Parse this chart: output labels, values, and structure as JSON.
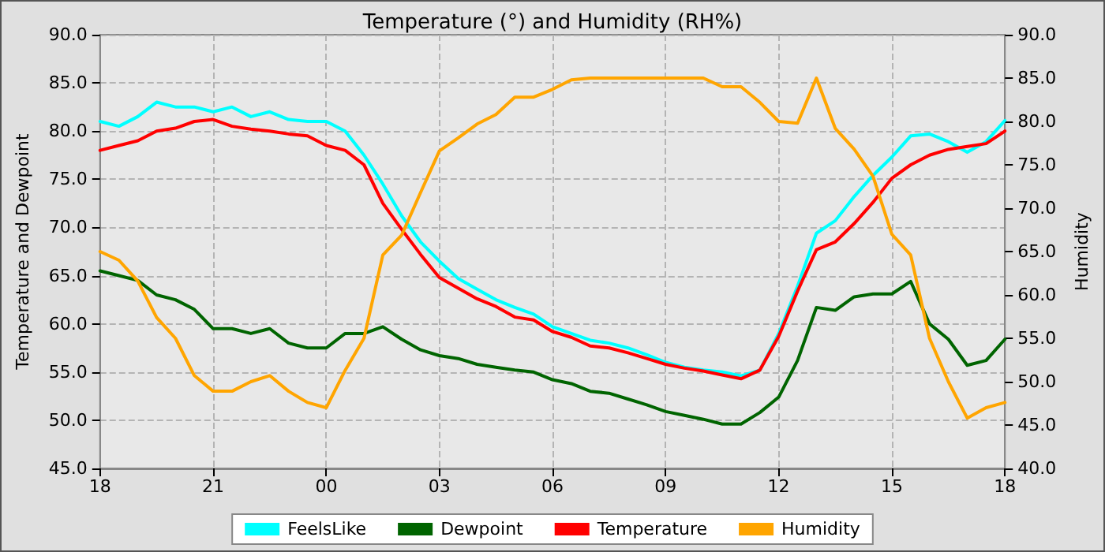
{
  "chart_data": {
    "type": "line",
    "title": "Temperature (°) and Humidity (RH%)",
    "ylabel": "Temperature and Dewpoint",
    "y2label": "Humidity",
    "x": [
      18,
      18.5,
      19,
      19.5,
      20,
      20.5,
      21,
      21.5,
      22,
      22.5,
      23,
      23.5,
      24,
      24.5,
      25,
      25.5,
      26,
      26.5,
      27,
      27.5,
      28,
      28.5,
      29,
      29.5,
      30,
      30.5,
      31,
      31.5,
      32,
      32.5,
      33,
      33.5,
      34,
      34.5,
      35,
      35.5,
      36,
      36.5,
      37,
      37.5,
      38,
      38.5,
      39,
      39.5,
      40,
      40.5,
      41,
      41.5,
      42
    ],
    "xlim": [
      18,
      42
    ],
    "xticks": [
      {
        "value": 18,
        "label": "18"
      },
      {
        "value": 21,
        "label": "21"
      },
      {
        "value": 24,
        "label": "00"
      },
      {
        "value": 27,
        "label": "03"
      },
      {
        "value": 30,
        "label": "06"
      },
      {
        "value": 33,
        "label": "09"
      },
      {
        "value": 36,
        "label": "12"
      },
      {
        "value": 39,
        "label": "15"
      },
      {
        "value": 42,
        "label": "18"
      }
    ],
    "ylim": [
      45,
      90
    ],
    "yticks": [
      {
        "value": 45,
        "label": "45.0"
      },
      {
        "value": 50,
        "label": "50.0"
      },
      {
        "value": 55,
        "label": "55.0"
      },
      {
        "value": 60,
        "label": "60.0"
      },
      {
        "value": 65,
        "label": "65.0"
      },
      {
        "value": 70,
        "label": "70.0"
      },
      {
        "value": 75,
        "label": "75.0"
      },
      {
        "value": 80,
        "label": "80.0"
      },
      {
        "value": 85,
        "label": "85.0"
      },
      {
        "value": 90,
        "label": "90.0"
      }
    ],
    "y2lim": [
      40,
      90
    ],
    "y2ticks": [
      {
        "value": 40,
        "label": "40.0"
      },
      {
        "value": 45,
        "label": "45.0"
      },
      {
        "value": 50,
        "label": "50.0"
      },
      {
        "value": 55,
        "label": "55.0"
      },
      {
        "value": 60,
        "label": "60.0"
      },
      {
        "value": 65,
        "label": "65.0"
      },
      {
        "value": 70,
        "label": "70.0"
      },
      {
        "value": 75,
        "label": "75.0"
      },
      {
        "value": 80,
        "label": "80.0"
      },
      {
        "value": 85,
        "label": "85.0"
      },
      {
        "value": 90,
        "label": "90.0"
      }
    ],
    "grid": true,
    "legend": "bottom",
    "marker": "none",
    "line_style": "solid",
    "series": [
      {
        "name": "FeelsLike",
        "color": "#00ffff",
        "values": [
          81,
          80.5,
          81.5,
          83,
          82.5,
          82.5,
          82,
          82.5,
          81.5,
          82,
          81.2,
          81,
          81,
          80,
          77.5,
          74.5,
          71.2,
          68.5,
          66.5,
          64.7,
          63.6,
          62.5,
          61.7,
          61,
          59.7,
          59,
          58.3,
          58,
          57.5,
          56.8,
          56,
          55.5,
          55.2,
          55,
          54.6,
          55.2,
          59,
          63.9,
          69.4,
          70.7,
          73.2,
          75.4,
          77.3,
          79.5,
          79.7,
          78.9,
          77.8,
          78.9,
          81.1
        ]
      },
      {
        "name": "Dewpoint",
        "color": "#006400",
        "values": [
          65.5,
          65,
          64.5,
          63,
          62.5,
          61.5,
          59.5,
          59.5,
          59,
          59.5,
          58,
          57.5,
          57.5,
          59,
          59,
          59.7,
          58.4,
          57.3,
          56.7,
          56.4,
          55.8,
          55.5,
          55.2,
          55,
          54.2,
          53.8,
          53,
          52.8,
          52.2,
          51.6,
          50.9,
          50.5,
          50.1,
          49.6,
          49.6,
          50.8,
          52.4,
          56.2,
          61.7,
          61.4,
          62.8,
          63.1,
          63.1,
          64.4,
          60,
          58.4,
          55.7,
          56.2,
          58.4
        ]
      },
      {
        "name": "Temperature",
        "color": "#ff0000",
        "values": [
          78,
          78.5,
          79,
          80,
          80.3,
          81,
          81.2,
          80.5,
          80.2,
          80,
          79.7,
          79.5,
          78.5,
          78,
          76.5,
          72.5,
          69.8,
          67.2,
          64.8,
          63.7,
          62.6,
          61.8,
          60.7,
          60.4,
          59.2,
          58.6,
          57.7,
          57.5,
          57,
          56.4,
          55.8,
          55.4,
          55.1,
          54.7,
          54.3,
          55.2,
          58.7,
          63.4,
          67.7,
          68.5,
          70.4,
          72.6,
          75.1,
          76.5,
          77.5,
          78.1,
          78.4,
          78.7,
          80
        ]
      },
      {
        "name": "Humidity",
        "color": "#ffa500",
        "axis": "y2",
        "values": [
          65,
          64,
          61.6,
          57.4,
          55,
          50.7,
          48.9,
          48.9,
          50,
          50.7,
          48.9,
          47.6,
          47,
          51.3,
          55,
          64.6,
          66.9,
          71.8,
          76.6,
          78.1,
          79.7,
          80.8,
          82.8,
          82.8,
          83.7,
          84.8,
          85,
          85,
          85,
          85,
          85,
          85,
          85,
          84,
          84,
          82.2,
          80,
          79.8,
          85,
          79.2,
          76.8,
          73.7,
          67,
          64.6,
          55,
          50,
          45.8,
          47,
          47.6
        ]
      }
    ]
  }
}
